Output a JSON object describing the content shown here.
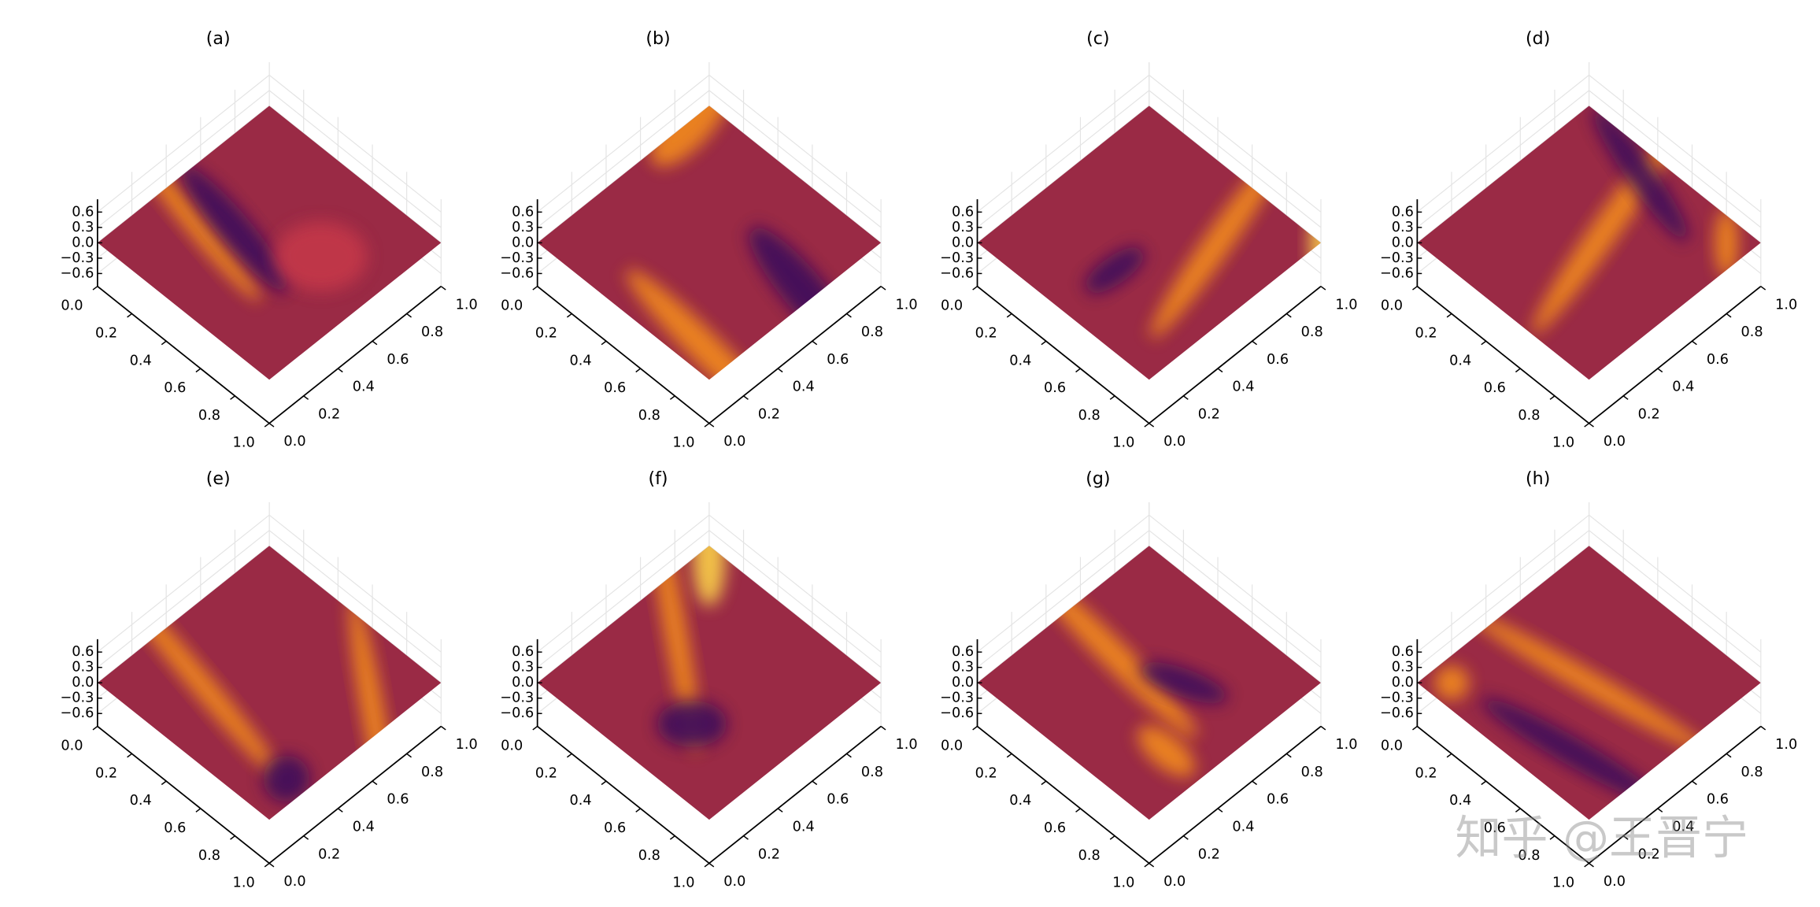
{
  "chart_data": [
    {
      "type": "surface",
      "title": "(a)",
      "colormap": "inferno",
      "grid": true,
      "xlim": [
        0,
        1
      ],
      "ylim": [
        0,
        1
      ],
      "zlim": [
        -0.85,
        0.85
      ],
      "xticks": [
        {
          "value": 0,
          "label": "0.0"
        },
        0.2,
        0.4,
        0.6,
        0.8,
        {
          "value": 1,
          "label": "1.0"
        }
      ],
      "yticks": [
        {
          "value": 0,
          "label": "0.0"
        },
        0.2,
        0.4,
        0.6,
        0.8,
        {
          "value": 1,
          "label": "1.0"
        }
      ],
      "zticks": [
        {
          "value": -0.6,
          "label": "−0.6"
        },
        {
          "value": -0.3,
          "label": "−0.3"
        },
        {
          "value": 0,
          "label": "0.0"
        },
        0.3,
        0.6
      ]
    },
    {
      "type": "surface",
      "title": "(b)",
      "colormap": "inferno",
      "grid": true,
      "xlim": [
        0,
        1
      ],
      "ylim": [
        0,
        1
      ],
      "zlim": [
        -0.85,
        0.85
      ],
      "xticks": [
        {
          "value": 0,
          "label": "0.0"
        },
        0.2,
        0.4,
        0.6,
        0.8,
        {
          "value": 1,
          "label": "1.0"
        }
      ],
      "yticks": [
        {
          "value": 0,
          "label": "0.0"
        },
        0.2,
        0.4,
        0.6,
        0.8,
        {
          "value": 1,
          "label": "1.0"
        }
      ],
      "zticks": [
        {
          "value": -0.6,
          "label": "−0.6"
        },
        {
          "value": -0.3,
          "label": "−0.3"
        },
        {
          "value": 0,
          "label": "0.0"
        },
        0.3,
        0.6
      ]
    },
    {
      "type": "surface",
      "title": "(c)",
      "colormap": "inferno",
      "grid": true,
      "xlim": [
        0,
        1
      ],
      "ylim": [
        0,
        1
      ],
      "zlim": [
        -0.85,
        0.85
      ],
      "xticks": [
        {
          "value": 0,
          "label": "0.0"
        },
        0.2,
        0.4,
        0.6,
        0.8,
        {
          "value": 1,
          "label": "1.0"
        }
      ],
      "yticks": [
        {
          "value": 0,
          "label": "0.0"
        },
        0.2,
        0.4,
        0.6,
        0.8,
        {
          "value": 1,
          "label": "1.0"
        }
      ],
      "zticks": [
        {
          "value": -0.6,
          "label": "−0.6"
        },
        {
          "value": -0.3,
          "label": "−0.3"
        },
        {
          "value": 0,
          "label": "0.0"
        },
        0.3,
        0.6
      ]
    },
    {
      "type": "surface",
      "title": "(d)",
      "colormap": "inferno",
      "grid": true,
      "xlim": [
        0,
        1
      ],
      "ylim": [
        0,
        1
      ],
      "zlim": [
        -0.85,
        0.85
      ],
      "xticks": [
        {
          "value": 0,
          "label": "0.0"
        },
        0.2,
        0.4,
        0.6,
        0.8,
        {
          "value": 1,
          "label": "1.0"
        }
      ],
      "yticks": [
        {
          "value": 0,
          "label": "0.0"
        },
        0.2,
        0.4,
        0.6,
        0.8,
        {
          "value": 1,
          "label": "1.0"
        }
      ],
      "zticks": [
        {
          "value": -0.6,
          "label": "−0.6"
        },
        {
          "value": -0.3,
          "label": "−0.3"
        },
        {
          "value": 0,
          "label": "0.0"
        },
        0.3,
        0.6
      ]
    },
    {
      "type": "surface",
      "title": "(e)",
      "colormap": "inferno",
      "grid": true,
      "xlim": [
        0,
        1
      ],
      "ylim": [
        0,
        1
      ],
      "zlim": [
        -0.85,
        0.85
      ],
      "xticks": [
        {
          "value": 0,
          "label": "0.0"
        },
        0.2,
        0.4,
        0.6,
        0.8,
        {
          "value": 1,
          "label": "1.0"
        }
      ],
      "yticks": [
        {
          "value": 0,
          "label": "0.0"
        },
        0.2,
        0.4,
        0.6,
        0.8,
        {
          "value": 1,
          "label": "1.0"
        }
      ],
      "zticks": [
        {
          "value": -0.6,
          "label": "−0.6"
        },
        {
          "value": -0.3,
          "label": "−0.3"
        },
        {
          "value": 0,
          "label": "0.0"
        },
        0.3,
        0.6
      ]
    },
    {
      "type": "surface",
      "title": "(f)",
      "colormap": "inferno",
      "grid": true,
      "xlim": [
        0,
        1
      ],
      "ylim": [
        0,
        1
      ],
      "zlim": [
        -0.85,
        0.85
      ],
      "xticks": [
        {
          "value": 0,
          "label": "0.0"
        },
        0.2,
        0.4,
        0.6,
        0.8,
        {
          "value": 1,
          "label": "1.0"
        }
      ],
      "yticks": [
        {
          "value": 0,
          "label": "0.0"
        },
        0.2,
        0.4,
        0.6,
        0.8,
        {
          "value": 1,
          "label": "1.0"
        }
      ],
      "zticks": [
        {
          "value": -0.6,
          "label": "−0.6"
        },
        {
          "value": -0.3,
          "label": "−0.3"
        },
        {
          "value": 0,
          "label": "0.0"
        },
        0.3,
        0.6
      ]
    },
    {
      "type": "surface",
      "title": "(g)",
      "colormap": "inferno",
      "grid": true,
      "xlim": [
        0,
        1
      ],
      "ylim": [
        0,
        1
      ],
      "zlim": [
        -0.85,
        0.85
      ],
      "xticks": [
        {
          "value": 0,
          "label": "0.0"
        },
        0.2,
        0.4,
        0.6,
        0.8,
        {
          "value": 1,
          "label": "1.0"
        }
      ],
      "yticks": [
        {
          "value": 0,
          "label": "0.0"
        },
        0.2,
        0.4,
        0.6,
        0.8,
        {
          "value": 1,
          "label": "1.0"
        }
      ],
      "zticks": [
        {
          "value": -0.6,
          "label": "−0.6"
        },
        {
          "value": -0.3,
          "label": "−0.3"
        },
        {
          "value": 0,
          "label": "0.0"
        },
        0.3,
        0.6
      ]
    },
    {
      "type": "surface",
      "title": "(h)",
      "colormap": "inferno",
      "grid": true,
      "xlim": [
        0,
        1
      ],
      "ylim": [
        0,
        1
      ],
      "zlim": [
        -0.85,
        0.85
      ],
      "xticks": [
        {
          "value": 0,
          "label": "0.0"
        },
        0.2,
        0.4,
        0.6,
        0.8,
        {
          "value": 1,
          "label": "1.0"
        }
      ],
      "yticks": [
        {
          "value": 0,
          "label": "0.0"
        },
        0.2,
        0.4,
        0.6,
        0.8,
        {
          "value": 1,
          "label": "1.0"
        }
      ],
      "zticks": [
        {
          "value": -0.6,
          "label": "−0.6"
        },
        {
          "value": -0.3,
          "label": "−0.3"
        },
        {
          "value": 0,
          "label": "0.0"
        },
        0.3,
        0.6
      ]
    }
  ],
  "watermark": "知乎 @王晋宁"
}
